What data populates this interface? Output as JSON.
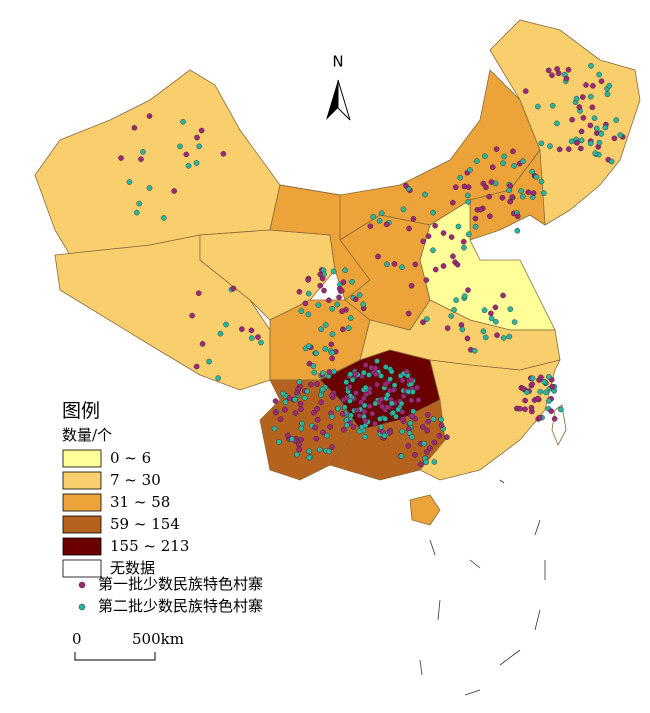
{
  "legend": {
    "title": "图例",
    "subtitle": "数量/个",
    "items": [
      {
        "label": "0 ~ 6",
        "color": "#ffff99"
      },
      {
        "label": "7 ~ 30",
        "color": "#f9cf6e"
      },
      {
        "label": "31 ~ 58",
        "color": "#eba33a"
      },
      {
        "label": "59 ~ 154",
        "color": "#b5621e"
      },
      {
        "label": "155 ~ 213",
        "color": "#6b0000"
      },
      {
        "label": "无数据",
        "color": "#ffffff"
      }
    ],
    "markers": [
      {
        "label": "第一批少数民族特色村寨",
        "color": "#a0287a"
      },
      {
        "label": "第二批少数民族特色村寨",
        "color": "#2bb5a0"
      }
    ]
  },
  "north_arrow": "N",
  "scale_bar": {
    "labels": [
      "0",
      "500km"
    ]
  }
}
